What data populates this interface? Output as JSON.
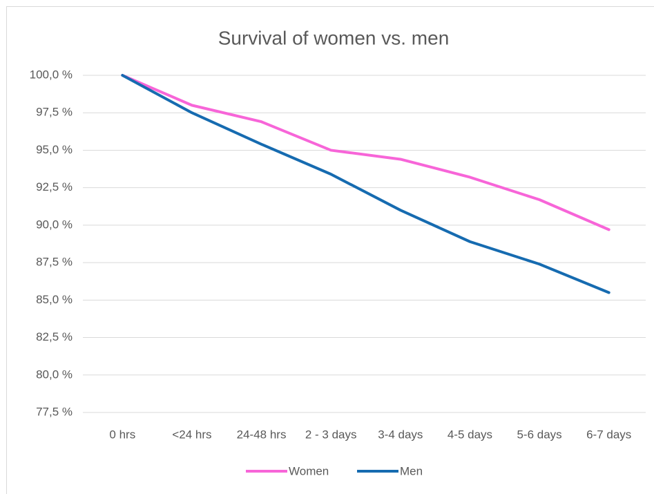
{
  "chart_data": {
    "type": "line",
    "title": "Survival of women vs. men",
    "categories": [
      "0 hrs",
      "<24 hrs",
      "24-48 hrs",
      "2 - 3 days",
      "3-4 days",
      "4-5 days",
      "5-6 days",
      "6-7 days"
    ],
    "series": [
      {
        "name": "Women",
        "color": "#f765d8",
        "values": [
          100,
          98.0,
          96.9,
          95.0,
          94.4,
          93.2,
          91.7,
          89.7
        ]
      },
      {
        "name": "Men",
        "color": "#166bb0",
        "values": [
          100,
          97.5,
          95.4,
          93.4,
          91.0,
          88.9,
          87.4,
          85.5
        ]
      }
    ],
    "ylim": [
      77.5,
      100
    ],
    "yticks": [
      {
        "value": 77.5,
        "label": "77,5 %"
      },
      {
        "value": 80,
        "label": "80,0 %"
      },
      {
        "value": 82.5,
        "label": "82,5 %"
      },
      {
        "value": 85,
        "label": "85,0 %"
      },
      {
        "value": 87.5,
        "label": "87,5 %"
      },
      {
        "value": 90,
        "label": "90,0 %"
      },
      {
        "value": 92.5,
        "label": "92,5 %"
      },
      {
        "value": 95,
        "label": "95,0 %"
      },
      {
        "value": 97.5,
        "label": "97,5 %"
      },
      {
        "value": 100,
        "label": "100,0 %"
      }
    ],
    "grid": true,
    "legend": "bottom"
  }
}
